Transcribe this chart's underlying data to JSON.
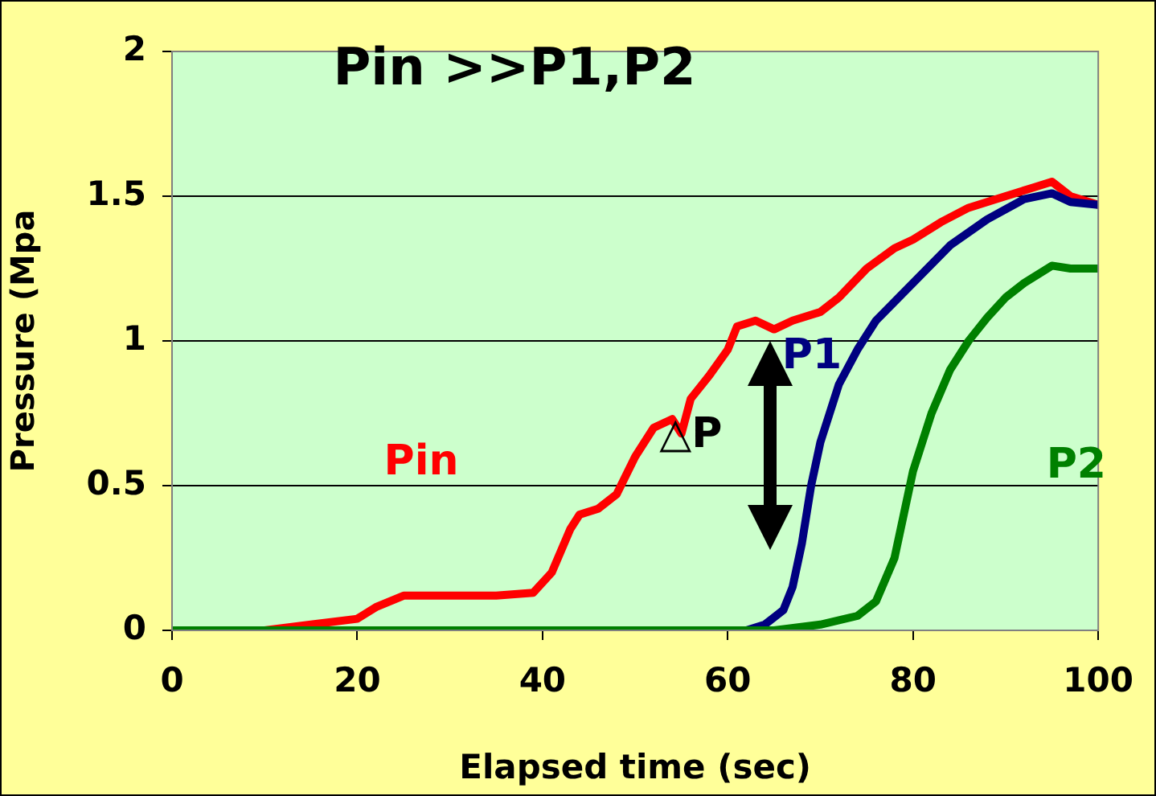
{
  "chart_data": {
    "type": "line",
    "title": "Pin >>P1,P2",
    "xlabel": "Elapsed time (sec)",
    "ylabel": "Pressure (Mpa",
    "xlim": [
      0,
      100
    ],
    "xticks": [
      0,
      20,
      40,
      60,
      80,
      100
    ],
    "ylim": [
      0,
      2
    ],
    "yticks": [
      0,
      0.5,
      1,
      1.5,
      2
    ],
    "grid": "y",
    "legend": false,
    "marker": "none",
    "line_style": "solid",
    "series": [
      {
        "name": "Pin",
        "color": "#ff0000",
        "x": [
          0,
          10,
          15,
          20,
          22,
          25,
          30,
          35,
          39,
          41,
          43,
          44,
          46,
          48,
          50,
          52,
          54,
          55,
          56,
          58,
          60,
          61,
          63,
          65,
          67,
          70,
          72,
          75,
          78,
          80,
          83,
          86,
          90,
          93,
          95,
          97,
          100
        ],
        "values": [
          0,
          0,
          0.02,
          0.04,
          0.08,
          0.12,
          0.12,
          0.12,
          0.13,
          0.2,
          0.35,
          0.4,
          0.42,
          0.47,
          0.6,
          0.7,
          0.73,
          0.68,
          0.8,
          0.88,
          0.97,
          1.05,
          1.07,
          1.04,
          1.07,
          1.1,
          1.15,
          1.25,
          1.32,
          1.35,
          1.41,
          1.46,
          1.5,
          1.53,
          1.55,
          1.5,
          1.47
        ]
      },
      {
        "name": "P1",
        "color": "#000080",
        "x": [
          0,
          62,
          64,
          66,
          67,
          68,
          69,
          70,
          72,
          74,
          76,
          80,
          84,
          88,
          92,
          95,
          97,
          100
        ],
        "values": [
          0,
          0,
          0.02,
          0.07,
          0.15,
          0.3,
          0.5,
          0.65,
          0.85,
          0.97,
          1.07,
          1.2,
          1.33,
          1.42,
          1.49,
          1.51,
          1.48,
          1.47
        ]
      },
      {
        "name": "P2",
        "color": "#008000",
        "x": [
          0,
          65,
          70,
          74,
          76,
          78,
          79,
          80,
          82,
          84,
          86,
          88,
          90,
          92,
          95,
          97,
          100
        ],
        "values": [
          0,
          0,
          0.02,
          0.05,
          0.1,
          0.25,
          0.4,
          0.55,
          0.75,
          0.9,
          1.0,
          1.08,
          1.15,
          1.2,
          1.26,
          1.25,
          1.25
        ]
      }
    ],
    "annotations": [
      {
        "text": "△P",
        "x": 56,
        "y": 0.67
      }
    ]
  }
}
